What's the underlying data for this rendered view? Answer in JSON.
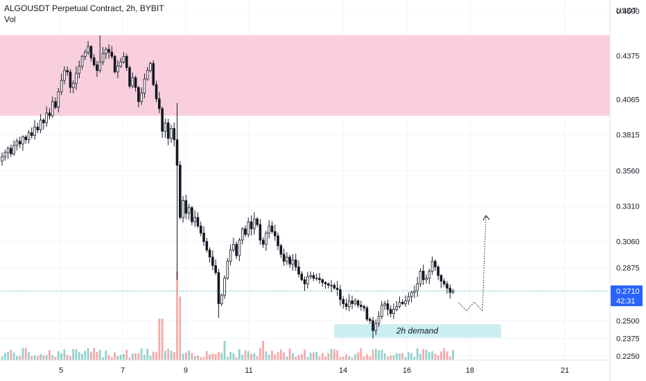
{
  "header": {
    "symbol_line": "ALGOUSDT Perpetual Contract, 2h, BYBIT",
    "volume_label": "Vol"
  },
  "price_axis": {
    "unit": "USDT",
    "labels": [
      "0.4690",
      "0.4375",
      "0.4065",
      "0.3815",
      "0.3560",
      "0.3310",
      "0.3060",
      "0.2875",
      "0.2710",
      "0.2500",
      "0.2375",
      "0.2250"
    ],
    "last_price": "0.2710",
    "countdown": "42:31"
  },
  "time_axis": {
    "labels": [
      "5",
      "7",
      "9",
      "11",
      "14",
      "16",
      "18",
      "21"
    ]
  },
  "zones": {
    "supply_color": "#f9cfdd",
    "demand_color": "#cbeef1",
    "demand_label": "2h demand"
  },
  "colors": {
    "up": "#26a69a",
    "down": "#ef5350",
    "candle": "#131722",
    "last_price": "#2962ff"
  },
  "chart_data": {
    "type": "candlestick",
    "title": "ALGOUSDT Perpetual Contract, 2h, BYBIT",
    "ylabel": "USDT",
    "ylim": [
      0.222,
      0.472
    ],
    "x_ticks": [
      "5",
      "7",
      "9",
      "11",
      "14",
      "16",
      "18",
      "21"
    ],
    "last_price": 0.271,
    "supply_zone": [
      0.395,
      0.452
    ],
    "demand_zone": {
      "price_range": [
        0.238,
        0.2475
      ],
      "label": "2h demand"
    },
    "series_close": [
      0.366,
      0.369,
      0.372,
      0.368,
      0.374,
      0.377,
      0.375,
      0.38,
      0.378,
      0.383,
      0.381,
      0.387,
      0.385,
      0.392,
      0.39,
      0.397,
      0.395,
      0.405,
      0.401,
      0.412,
      0.42,
      0.427,
      0.426,
      0.415,
      0.418,
      0.425,
      0.43,
      0.437,
      0.44,
      0.444,
      0.436,
      0.431,
      0.427,
      0.433,
      0.439,
      0.442,
      0.44,
      0.437,
      0.426,
      0.43,
      0.433,
      0.437,
      0.429,
      0.416,
      0.422,
      0.415,
      0.405,
      0.411,
      0.421,
      0.427,
      0.432,
      0.417,
      0.407,
      0.4,
      0.384,
      0.39,
      0.379,
      0.386,
      0.378,
      0.36,
      0.323,
      0.335,
      0.326,
      0.33,
      0.32,
      0.323,
      0.317,
      0.312,
      0.306,
      0.3,
      0.295,
      0.289,
      0.284,
      0.262,
      0.268,
      0.28,
      0.292,
      0.3,
      0.304,
      0.296,
      0.307,
      0.315,
      0.311,
      0.32,
      0.315,
      0.322,
      0.318,
      0.307,
      0.304,
      0.312,
      0.317,
      0.313,
      0.31,
      0.303,
      0.297,
      0.292,
      0.295,
      0.29,
      0.293,
      0.288,
      0.283,
      0.279,
      0.276,
      0.281,
      0.282,
      0.28,
      0.28,
      0.279,
      0.277,
      0.276,
      0.275,
      0.275,
      0.273,
      0.272,
      0.265,
      0.262,
      0.26,
      0.264,
      0.262,
      0.264,
      0.261,
      0.26,
      0.259,
      0.251,
      0.25,
      0.243,
      0.248,
      0.253,
      0.261,
      0.262,
      0.258,
      0.255,
      0.258,
      0.26,
      0.263,
      0.262,
      0.264,
      0.267,
      0.27,
      0.271,
      0.276,
      0.285,
      0.279,
      0.28,
      0.285,
      0.292,
      0.288,
      0.282,
      0.278,
      0.276,
      0.273,
      0.27,
      0.271
    ]
  }
}
